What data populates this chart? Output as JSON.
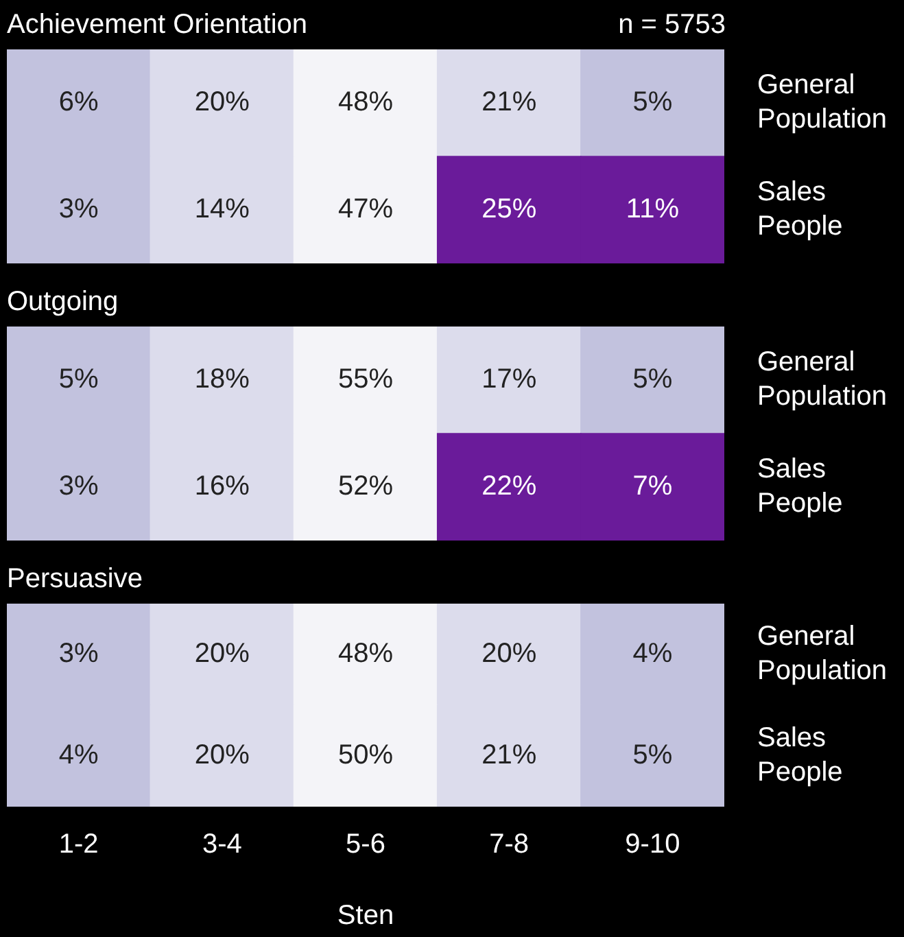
{
  "chart_data": [
    {
      "type": "heatmap",
      "title": "Achievement Orientation",
      "annotations": [
        "n = 5753"
      ],
      "categories": [
        null,
        null,
        null,
        null,
        null
      ],
      "y_categories": [
        "General Population",
        "Sales People"
      ],
      "cells": [
        [
          6,
          20,
          48,
          21,
          5
        ],
        [
          3,
          14,
          47,
          25,
          11
        ]
      ],
      "cell_labels": [
        [
          "6%",
          "20%",
          "48%",
          "21%",
          "5%"
        ],
        [
          "3%",
          "14%",
          "47%",
          "25%",
          "11%"
        ]
      ],
      "colors": [
        [
          "#c2c2de",
          "#dcdcec",
          "#f4f4f8",
          "#dcdcec",
          "#c2c2de"
        ],
        [
          "#c2c2de",
          "#dcdcec",
          "#f4f4f8",
          "#6a1b9a",
          "#6a1b9a"
        ]
      ],
      "tick_labels": "y"
    },
    {
      "type": "heatmap",
      "title": "Outgoing",
      "categories": [
        null,
        null,
        null,
        null,
        null
      ],
      "y_categories": [
        "General Population",
        "Sales People"
      ],
      "cells": [
        [
          5,
          18,
          55,
          17,
          5
        ],
        [
          3,
          16,
          52,
          22,
          7
        ]
      ],
      "cell_labels": [
        [
          "5%",
          "18%",
          "55%",
          "17%",
          "5%"
        ],
        [
          "3%",
          "16%",
          "52%",
          "22%",
          "7%"
        ]
      ],
      "colors": [
        [
          "#c2c2de",
          "#dcdcec",
          "#f4f4f8",
          "#dcdcec",
          "#c2c2de"
        ],
        [
          "#c2c2de",
          "#dcdcec",
          "#f4f4f8",
          "#6a1b9a",
          "#6a1b9a"
        ]
      ],
      "tick_labels": "y"
    },
    {
      "type": "heatmap",
      "title": "Persuasive",
      "xlabel": "Sten",
      "categories": [
        "1-2",
        "3-4",
        "5-6",
        "7-8",
        "9-10"
      ],
      "y_categories": [
        "General Population",
        "Sales People"
      ],
      "cells": [
        [
          3,
          20,
          48,
          20,
          4
        ],
        [
          4,
          20,
          50,
          21,
          5
        ]
      ],
      "cell_labels": [
        [
          "3%",
          "20%",
          "48%",
          "20%",
          "4%"
        ],
        [
          "4%",
          "20%",
          "50%",
          "21%",
          "5%"
        ]
      ],
      "colors": [
        [
          "#c2c2de",
          "#dcdcec",
          "#f4f4f8",
          "#dcdcec",
          "#c2c2de"
        ],
        [
          "#c2c2de",
          "#dcdcec",
          "#f4f4f8",
          "#dcdcec",
          "#c2c2de"
        ]
      ]
    }
  ]
}
